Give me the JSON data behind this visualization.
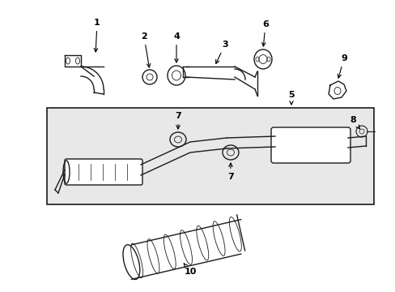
{
  "bg_color": "#ffffff",
  "box_bg": "#e8e8e8",
  "lc": "#1a1a1a",
  "lw": 1.0,
  "fig_width": 4.89,
  "fig_height": 3.6,
  "dpi": 100
}
